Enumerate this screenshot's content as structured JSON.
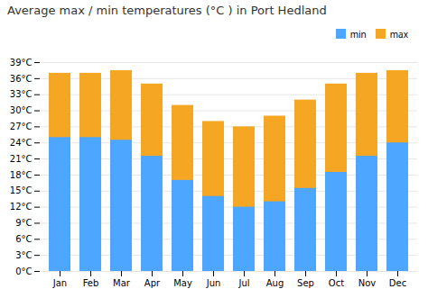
{
  "chart_data": {
    "type": "bar",
    "title": "Average max / min temperatures (°C ) in Port Hedland",
    "categories": [
      "Jan",
      "Feb",
      "Mar",
      "Apr",
      "May",
      "Jun",
      "Jul",
      "Aug",
      "Sep",
      "Oct",
      "Nov",
      "Dec"
    ],
    "series": [
      {
        "name": "min",
        "color": "#4da6ff",
        "values": [
          25,
          25,
          24.5,
          21.5,
          17,
          14,
          12,
          13,
          15.5,
          18.5,
          21.5,
          24
        ]
      },
      {
        "name": "max",
        "color": "#f5a623",
        "values": [
          37,
          37,
          37.5,
          35,
          31,
          28,
          27,
          29,
          32,
          35,
          37,
          37.5
        ]
      }
    ],
    "ylim": [
      0,
      39
    ],
    "yticks": [
      {
        "value": 0,
        "label": "0°C"
      },
      {
        "value": 3,
        "label": "3°C"
      },
      {
        "value": 6,
        "label": "6°C"
      },
      {
        "value": 9,
        "label": "9°C"
      },
      {
        "value": 12,
        "label": "12°C"
      },
      {
        "value": 15,
        "label": "15°C"
      },
      {
        "value": 18,
        "label": "18°C"
      },
      {
        "value": 21,
        "label": "21°C"
      },
      {
        "value": 24,
        "label": "24°C"
      },
      {
        "value": 27,
        "label": "27°C"
      },
      {
        "value": 30,
        "label": "30°C"
      },
      {
        "value": 33,
        "label": "33°C"
      },
      {
        "value": 36,
        "label": "36°C"
      },
      {
        "value": 39,
        "label": "39°C"
      }
    ],
    "grid": true,
    "legend": "top-right"
  }
}
